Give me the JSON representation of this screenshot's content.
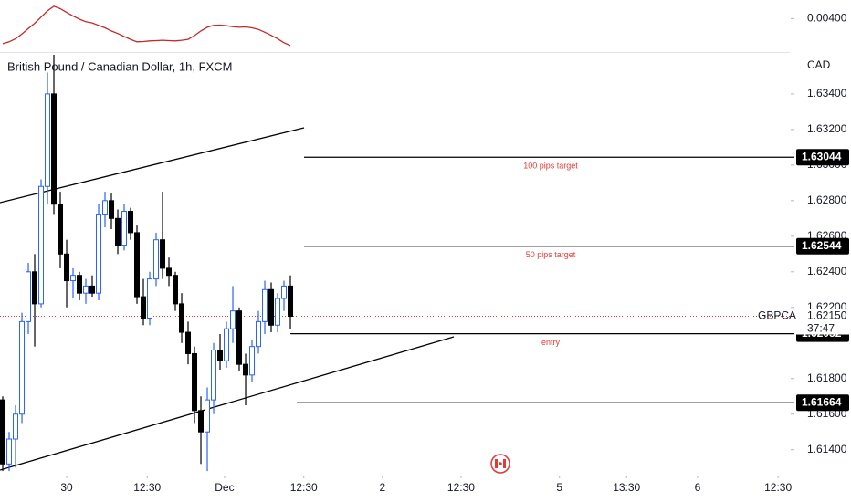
{
  "chart_data": {
    "type": "candlestick",
    "title": "British Pound / Canadian Dollar, 1h, FXCM",
    "currency": "CAD",
    "symbol": "GBPCAD",
    "countdown": "37:47",
    "last_price": {
      "value": 1.6215,
      "label": "1.62150"
    },
    "colors": {
      "up": "#2962ff",
      "down": "#000000",
      "level_text": "#e53935",
      "last_price": "#e53935"
    },
    "open": [
      1.6168,
      1.6132,
      1.6146,
      1.616,
      1.6212,
      1.624,
      1.6222,
      1.6288,
      1.634,
      1.6278,
      1.625,
      1.6235,
      1.6238,
      1.6228,
      1.6232,
      1.6228,
      1.6272,
      1.628,
      1.627,
      1.6255,
      1.6274,
      1.6262,
      1.6226,
      1.6214,
      1.6236,
      1.6258,
      1.6242,
      1.6238,
      1.6222,
      1.6206,
      1.6194,
      1.6162,
      1.615,
      1.6168,
      1.6196,
      1.619,
      1.6208,
      1.6218,
      1.6188,
      1.6182,
      1.6198,
      1.6212,
      1.623,
      1.621,
      1.6225,
      1.6232
    ],
    "high": [
      1.617,
      1.615,
      1.6165,
      1.6217,
      1.6245,
      1.625,
      1.6292,
      1.6352,
      1.6362,
      1.6285,
      1.6258,
      1.6242,
      1.624,
      1.6236,
      1.6238,
      1.6278,
      1.6285,
      1.6284,
      1.6275,
      1.6278,
      1.6276,
      1.6266,
      1.6236,
      1.624,
      1.6262,
      1.6285,
      1.6248,
      1.624,
      1.6228,
      1.6212,
      1.6198,
      1.617,
      1.6175,
      1.62,
      1.6205,
      1.6212,
      1.6232,
      1.622,
      1.6194,
      1.6202,
      1.6218,
      1.6235,
      1.6234,
      1.6228,
      1.6235,
      1.6238
    ],
    "low": [
      1.6128,
      1.6128,
      1.613,
      1.6155,
      1.6205,
      1.6198,
      1.622,
      1.6278,
      1.6272,
      1.6242,
      1.622,
      1.6225,
      1.6224,
      1.6222,
      1.6226,
      1.6224,
      1.6265,
      1.6264,
      1.625,
      1.6252,
      1.6258,
      1.6222,
      1.621,
      1.621,
      1.6232,
      1.6236,
      1.6232,
      1.6218,
      1.62,
      1.6188,
      1.6155,
      1.6132,
      1.6128,
      1.616,
      1.6185,
      1.6186,
      1.62,
      1.6184,
      1.6165,
      1.6178,
      1.6194,
      1.6205,
      1.6206,
      1.6206,
      1.6218,
      1.6208
    ],
    "close": [
      1.6132,
      1.6146,
      1.616,
      1.6212,
      1.624,
      1.6222,
      1.6288,
      1.634,
      1.6278,
      1.625,
      1.6235,
      1.6238,
      1.6228,
      1.6232,
      1.6228,
      1.6272,
      1.628,
      1.627,
      1.6255,
      1.6274,
      1.6262,
      1.6226,
      1.6214,
      1.6236,
      1.6258,
      1.6242,
      1.6238,
      1.6222,
      1.6206,
      1.6194,
      1.6162,
      1.615,
      1.6168,
      1.6196,
      1.619,
      1.6208,
      1.6218,
      1.6188,
      1.6182,
      1.6198,
      1.6212,
      1.623,
      1.621,
      1.6225,
      1.6232,
      1.6215
    ],
    "xlim": [
      -0.43,
      123.14
    ],
    "xticks": [
      {
        "value": 10,
        "label": "30"
      },
      {
        "value": 22.6,
        "label": "12:30"
      },
      {
        "value": 34.7,
        "label": "Dec"
      },
      {
        "value": 47.1,
        "label": "12:30"
      },
      {
        "value": 59.4,
        "label": "2"
      },
      {
        "value": 71.7,
        "label": "12:30"
      },
      {
        "value": 87.1,
        "label": "5"
      },
      {
        "value": 97.6,
        "label": "13:30"
      },
      {
        "value": 108.7,
        "label": "6"
      },
      {
        "value": 121.3,
        "label": "12:30"
      }
    ],
    "ylim": [
      1.6126,
      1.6362
    ],
    "yticks": [
      {
        "value": 1.634,
        "label": "1.63400"
      },
      {
        "value": 1.632,
        "label": "1.63200"
      },
      {
        "value": 1.63,
        "label": "1.63000"
      },
      {
        "value": 1.628,
        "label": "1.62800"
      },
      {
        "value": 1.626,
        "label": "1.62600"
      },
      {
        "value": 1.624,
        "label": "1.62400"
      },
      {
        "value": 1.622,
        "label": "1.62200"
      },
      {
        "value": 1.618,
        "label": "1.61800"
      },
      {
        "value": 1.616,
        "label": "1.61600"
      },
      {
        "value": 1.614,
        "label": "1.61400"
      }
    ],
    "levels": [
      {
        "value": 1.63044,
        "label": "100 pips target"
      },
      {
        "value": 1.62544,
        "label": "50 pips target"
      },
      {
        "value": 1.62052,
        "label": "entry"
      },
      {
        "value": 1.61664
      }
    ],
    "indicator": {
      "type": "line",
      "color": "#c62828",
      "values": [
        0.00319,
        0.00325,
        0.00335,
        0.0035,
        0.00368,
        0.00385,
        0.00405,
        0.00425,
        0.0044,
        0.00432,
        0.0042,
        0.00408,
        0.00398,
        0.0039,
        0.00386,
        0.00378,
        0.0037,
        0.0036,
        0.00352,
        0.00342,
        0.00333,
        0.00325,
        0.00326,
        0.00328,
        0.00329,
        0.0033,
        0.00329,
        0.00328,
        0.0033,
        0.00333,
        0.00345,
        0.0036,
        0.00372,
        0.00378,
        0.00379,
        0.00377,
        0.00374,
        0.00372,
        0.00373,
        0.0037,
        0.00365,
        0.00356,
        0.00346,
        0.00335,
        0.00322,
        0.00313
      ],
      "ylim": [
        0.00295,
        0.0046
      ],
      "yticks": [
        {
          "value": 0.004,
          "label": "0.00400"
        }
      ]
    }
  }
}
